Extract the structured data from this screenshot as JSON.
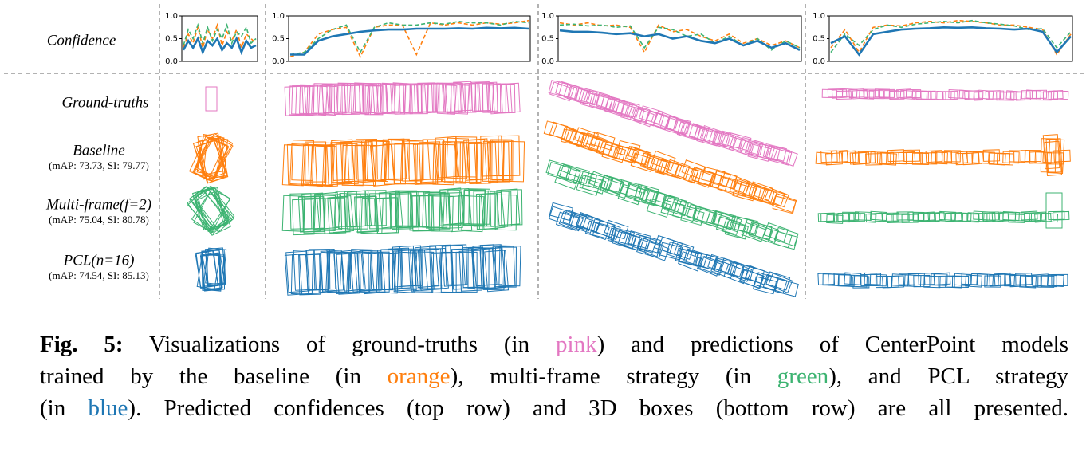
{
  "chart_data": [
    {
      "type": "line",
      "ylim": [
        0,
        1
      ],
      "yticks": [
        {
          "value": 0,
          "label": "0.0"
        },
        {
          "value": 0.5,
          "label": "0.5"
        },
        {
          "value": 1,
          "label": "1.0"
        }
      ],
      "series": [
        {
          "color": "#ff7f0e",
          "values": [
            0.3,
            0.6,
            0.4,
            0.75,
            0.3,
            0.7,
            0.5,
            0.8,
            0.35,
            0.65,
            0.45,
            0.7,
            0.3,
            0.6,
            0.5,
            0.4
          ]
        },
        {
          "color": "#3cb371",
          "values": [
            0.35,
            0.7,
            0.5,
            0.8,
            0.4,
            0.75,
            0.45,
            0.7,
            0.5,
            0.8,
            0.4,
            0.65,
            0.55,
            0.75,
            0.4,
            0.5
          ]
        },
        {
          "color": "#1f77b4",
          "values": [
            0.25,
            0.45,
            0.3,
            0.5,
            0.2,
            0.45,
            0.35,
            0.5,
            0.25,
            0.4,
            0.3,
            0.5,
            0.2,
            0.45,
            0.3,
            0.35
          ]
        }
      ]
    },
    {
      "type": "line",
      "ylim": [
        0,
        1
      ],
      "yticks": [
        {
          "value": 0,
          "label": "0.0"
        },
        {
          "value": 0.5,
          "label": "0.5"
        },
        {
          "value": 1,
          "label": "1.0"
        }
      ],
      "series": [
        {
          "color": "#ff7f0e",
          "values": [
            0.1,
            0.2,
            0.6,
            0.7,
            0.75,
            0.1,
            0.75,
            0.8,
            0.8,
            0.15,
            0.85,
            0.8,
            0.85,
            0.8,
            0.85,
            0.82,
            0.85,
            0.9
          ]
        },
        {
          "color": "#3cb371",
          "values": [
            0.15,
            0.2,
            0.5,
            0.7,
            0.8,
            0.2,
            0.75,
            0.85,
            0.8,
            0.8,
            0.85,
            0.82,
            0.88,
            0.85,
            0.85,
            0.8,
            0.88,
            0.85
          ]
        },
        {
          "color": "#1f77b4",
          "values": [
            0.15,
            0.15,
            0.45,
            0.55,
            0.6,
            0.65,
            0.68,
            0.7,
            0.7,
            0.72,
            0.72,
            0.72,
            0.73,
            0.72,
            0.74,
            0.73,
            0.74,
            0.72
          ]
        }
      ]
    },
    {
      "type": "line",
      "ylim": [
        0,
        1
      ],
      "yticks": [
        {
          "value": 0,
          "label": "0.0"
        },
        {
          "value": 0.5,
          "label": "0.5"
        },
        {
          "value": 1,
          "label": "1.0"
        }
      ],
      "series": [
        {
          "color": "#ff7f0e",
          "values": [
            0.85,
            0.8,
            0.85,
            0.78,
            0.8,
            0.75,
            0.2,
            0.8,
            0.65,
            0.7,
            0.55,
            0.45,
            0.6,
            0.4,
            0.5,
            0.35,
            0.45,
            0.3
          ]
        },
        {
          "color": "#3cb371",
          "values": [
            0.8,
            0.82,
            0.78,
            0.8,
            0.75,
            0.78,
            0.3,
            0.75,
            0.7,
            0.55,
            0.6,
            0.4,
            0.55,
            0.35,
            0.5,
            0.25,
            0.45,
            0.3
          ]
        },
        {
          "color": "#1f77b4",
          "values": [
            0.68,
            0.65,
            0.65,
            0.63,
            0.6,
            0.62,
            0.55,
            0.6,
            0.5,
            0.55,
            0.45,
            0.4,
            0.5,
            0.35,
            0.45,
            0.3,
            0.4,
            0.25
          ]
        }
      ]
    },
    {
      "type": "line",
      "ylim": [
        0,
        1
      ],
      "yticks": [
        {
          "value": 0,
          "label": "0.0"
        },
        {
          "value": 0.5,
          "label": "0.5"
        },
        {
          "value": 1,
          "label": "1.0"
        }
      ],
      "series": [
        {
          "color": "#ff7f0e",
          "values": [
            0.3,
            0.7,
            0.2,
            0.75,
            0.8,
            0.78,
            0.85,
            0.88,
            0.85,
            0.9,
            0.88,
            0.85,
            0.8,
            0.8,
            0.75,
            0.7,
            0.15,
            0.6
          ]
        },
        {
          "color": "#3cb371",
          "values": [
            0.2,
            0.6,
            0.35,
            0.7,
            0.8,
            0.75,
            0.82,
            0.85,
            0.88,
            0.85,
            0.9,
            0.85,
            0.82,
            0.78,
            0.7,
            0.72,
            0.3,
            0.65
          ]
        },
        {
          "color": "#1f77b4",
          "values": [
            0.4,
            0.55,
            0.15,
            0.6,
            0.65,
            0.7,
            0.72,
            0.73,
            0.75,
            0.74,
            0.75,
            0.73,
            0.72,
            0.7,
            0.72,
            0.65,
            0.2,
            0.55
          ]
        }
      ]
    }
  ],
  "rows": [
    {
      "title": "Confidence"
    },
    {
      "title": "Ground-truths"
    },
    {
      "title": "Baseline",
      "metrics": "(mAP: 73.73, SI: 79.77)"
    },
    {
      "title": "Multi-frame(f=2)",
      "metrics": "(mAP: 75.04, SI: 80.78)"
    },
    {
      "title": "PCL(n=16)",
      "metrics": "(mAP: 74.54, SI: 85.13)"
    }
  ],
  "caption": {
    "label": "Fig. 5:",
    "segments": [
      " Visualizations of ground-truths (in ",
      "pink",
      ") and predictions of CenterPoint models",
      "trained by the baseline (in ",
      "orange",
      "), multi-frame strategy (in ",
      "green",
      "), and PCL strategy",
      "(in ",
      "blue",
      "). Predicted confidences (top row) and 3D boxes (bottom row) are all presented."
    ]
  }
}
